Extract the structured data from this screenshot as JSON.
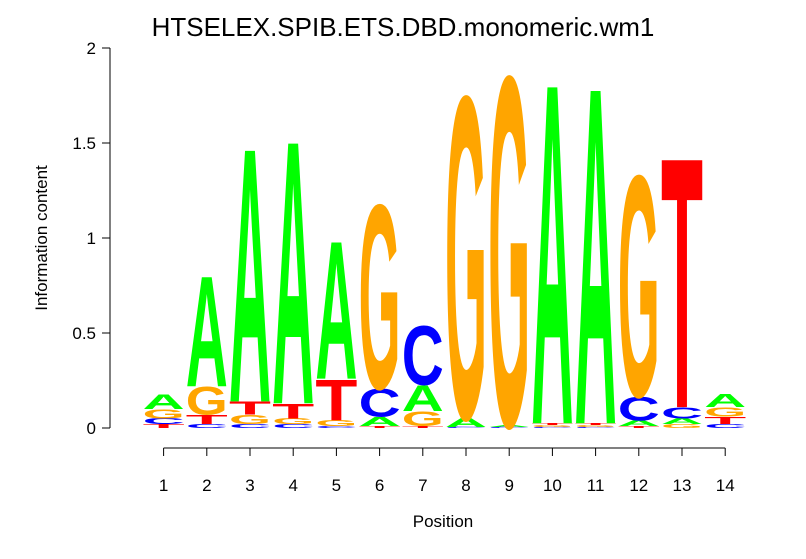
{
  "chart_data": {
    "type": "sequence-logo",
    "title": "HTSELEX.SPIB.ETS.DBD.monomeric.wm1",
    "xlabel": "Position",
    "ylabel": "Information content",
    "ylim": [
      0,
      2
    ],
    "yticks": [
      "0",
      "0.5",
      "1",
      "1.5",
      "2"
    ],
    "positions": [
      "1",
      "2",
      "3",
      "4",
      "5",
      "6",
      "7",
      "8",
      "9",
      "10",
      "11",
      "12",
      "13",
      "14"
    ],
    "colors": {
      "A": "#00ff00",
      "C": "#0000ff",
      "G": "#ffa500",
      "T": "#ff0000"
    },
    "stacks": [
      [
        {
          "base": "T",
          "height": 0.02
        },
        {
          "base": "C",
          "height": 0.03
        },
        {
          "base": "G",
          "height": 0.05
        },
        {
          "base": "A",
          "height": 0.08
        }
      ],
      [
        {
          "base": "C",
          "height": 0.02
        },
        {
          "base": "T",
          "height": 0.05
        },
        {
          "base": "G",
          "height": 0.15
        },
        {
          "base": "A",
          "height": 0.6
        }
      ],
      [
        {
          "base": "C",
          "height": 0.02
        },
        {
          "base": "G",
          "height": 0.05
        },
        {
          "base": "T",
          "height": 0.07
        },
        {
          "base": "A",
          "height": 1.38
        }
      ],
      [
        {
          "base": "C",
          "height": 0.02
        },
        {
          "base": "G",
          "height": 0.03
        },
        {
          "base": "T",
          "height": 0.08
        },
        {
          "base": "A",
          "height": 1.43
        }
      ],
      [
        {
          "base": "C",
          "height": 0.01
        },
        {
          "base": "G",
          "height": 0.03
        },
        {
          "base": "T",
          "height": 0.22
        },
        {
          "base": "A",
          "height": 0.75
        }
      ],
      [
        {
          "base": "T",
          "height": 0.01
        },
        {
          "base": "A",
          "height": 0.05
        },
        {
          "base": "C",
          "height": 0.15
        },
        {
          "base": "G",
          "height": 1.0
        }
      ],
      [
        {
          "base": "T",
          "height": 0.01
        },
        {
          "base": "G",
          "height": 0.08
        },
        {
          "base": "A",
          "height": 0.14
        },
        {
          "base": "C",
          "height": 0.32
        }
      ],
      [
        {
          "base": "C",
          "height": 0.005
        },
        {
          "base": "A",
          "height": 0.05
        },
        {
          "base": "G",
          "height": 1.75
        }
      ],
      [
        {
          "base": "C",
          "height": 0.005
        },
        {
          "base": "A",
          "height": 0.01
        },
        {
          "base": "G",
          "height": 1.9
        }
      ],
      [
        {
          "base": "C",
          "height": 0.005
        },
        {
          "base": "G",
          "height": 0.01
        },
        {
          "base": "T",
          "height": 0.01
        },
        {
          "base": "A",
          "height": 1.85
        }
      ],
      [
        {
          "base": "C",
          "height": 0.005
        },
        {
          "base": "G",
          "height": 0.01
        },
        {
          "base": "T",
          "height": 0.01
        },
        {
          "base": "A",
          "height": 1.83
        }
      ],
      [
        {
          "base": "T",
          "height": 0.01
        },
        {
          "base": "A",
          "height": 0.03
        },
        {
          "base": "C",
          "height": 0.13
        },
        {
          "base": "G",
          "height": 1.2
        }
      ],
      [
        {
          "base": "G",
          "height": 0.02
        },
        {
          "base": "A",
          "height": 0.03
        },
        {
          "base": "C",
          "height": 0.06
        },
        {
          "base": "T",
          "height": 1.36
        }
      ],
      [
        {
          "base": "C",
          "height": 0.02
        },
        {
          "base": "T",
          "height": 0.04
        },
        {
          "base": "G",
          "height": 0.05
        },
        {
          "base": "A",
          "height": 0.07
        }
      ]
    ]
  }
}
